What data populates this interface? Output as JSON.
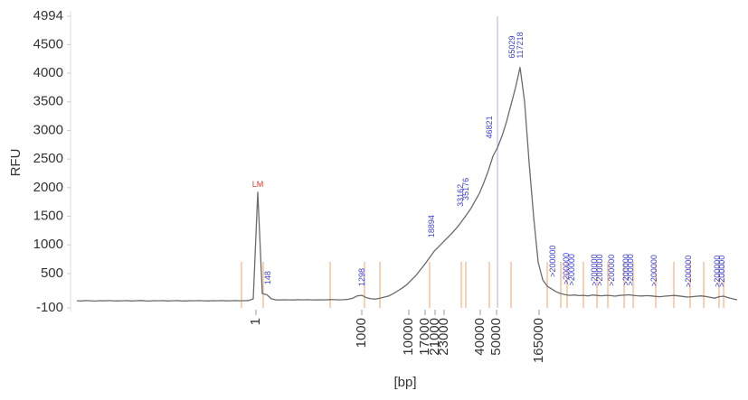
{
  "chart_data": {
    "type": "line",
    "y_label": "RFU",
    "x_label": "[bp]",
    "ylim": [
      -100,
      4994
    ],
    "yticks": [
      -100,
      500,
      1000,
      1500,
      2000,
      2500,
      3000,
      3500,
      4000,
      4500,
      4994
    ],
    "xlim": [
      0,
      146
    ],
    "xticks": [
      {
        "value": 39.6,
        "label": "1"
      },
      {
        "value": 63,
        "label": "1000"
      },
      {
        "value": 73.4,
        "label": "10000"
      },
      {
        "value": 77,
        "label": "17000"
      },
      {
        "value": 79.2,
        "label": "21000"
      },
      {
        "value": 81.2,
        "label": "23000"
      },
      {
        "value": 89.2,
        "label": "40000"
      },
      {
        "value": 92.8,
        "label": "50000"
      },
      {
        "value": 102.2,
        "label": "165000"
      }
    ],
    "series": [
      {
        "color": "#6b6b6b",
        "values": [
          25,
          22,
          27,
          24,
          20,
          26,
          23,
          28,
          25,
          21,
          24,
          27,
          22,
          25,
          29,
          23,
          20,
          26,
          24,
          27,
          22,
          25,
          28,
          23,
          21,
          26,
          24,
          27,
          25,
          22,
          26,
          24,
          28,
          23,
          25,
          27,
          24,
          26,
          30,
          60,
          1920,
          150,
          130,
          60,
          40,
          38,
          42,
          41,
          39,
          43,
          40,
          44,
          41,
          38,
          42,
          40,
          45,
          43,
          41,
          44,
          50,
          70,
          110,
          120,
          80,
          60,
          55,
          70,
          90,
          110,
          150,
          200,
          250,
          310,
          390,
          470,
          570,
          670,
          780,
          890,
          970,
          1050,
          1130,
          1210,
          1300,
          1400,
          1510,
          1620,
          1760,
          1900,
          2090,
          2300,
          2550,
          2700,
          2900,
          3150,
          3450,
          3750,
          4100,
          3500,
          2440,
          1490,
          700,
          390,
          280,
          230,
          180,
          150,
          130,
          120,
          125,
          115,
          120,
          110,
          125,
          118,
          112,
          120,
          115,
          105,
          118,
          122,
          128,
          120,
          112,
          108,
          115,
          110,
          100,
          95,
          105,
          112,
          118,
          110,
          100,
          90,
          96,
          104,
          110,
          100,
          85,
          70,
          95,
          105,
          80,
          60,
          40
        ]
      }
    ],
    "markers": [
      36.4,
      41.2,
      56,
      63.6,
      67,
      78,
      85,
      86,
      91.2,
      96,
      104,
      107,
      108.4,
      112,
      115,
      117.4,
      121,
      123,
      128,
      132,
      135.6,
      138.6,
      142,
      143
    ],
    "marker_color": "#f4b183",
    "reference_line": 93,
    "reference_color": "#b8bdf0",
    "peaks": [
      {
        "label": "LM",
        "x": 40,
        "color": "#e03c31"
      },
      {
        "label": "148",
        "x": 42.2,
        "color": "#3a3fd0"
      },
      {
        "label": "1298",
        "x": 63,
        "color": "#3a3fd0"
      },
      {
        "label": "18894",
        "x": 78.4,
        "color": "#3a3fd0"
      },
      {
        "label": "33162",
        "x": 84.8,
        "color": "#3a3fd0"
      },
      {
        "label": "35176",
        "x": 86,
        "color": "#3a3fd0"
      },
      {
        "label": "46821",
        "x": 91.2,
        "color": "#3a3fd0"
      },
      {
        "label": "65029",
        "x": 96.2,
        "color": "#3a3fd0"
      },
      {
        "label": "117218",
        "x": 98,
        "color": "#3a3fd0"
      },
      {
        "label": ">200000",
        "x": 105.2,
        "color": "#3a3fd0"
      },
      {
        "label": ">200000",
        "x": 108.2,
        "color": "#3a3fd0"
      },
      {
        "label": ">200000",
        "x": 109.4,
        "color": "#3a3fd0"
      },
      {
        "label": ">200000",
        "x": 114.4,
        "color": "#3a3fd0"
      },
      {
        "label": ">200000",
        "x": 115.6,
        "color": "#3a3fd0"
      },
      {
        "label": ">200000",
        "x": 118.2,
        "color": "#3a3fd0"
      },
      {
        "label": ">200000",
        "x": 121.4,
        "color": "#3a3fd0"
      },
      {
        "label": ">200000",
        "x": 122.4,
        "color": "#3a3fd0"
      },
      {
        "label": ">200000",
        "x": 127.6,
        "color": "#3a3fd0"
      },
      {
        "label": ">200000",
        "x": 135.2,
        "color": "#3a3fd0"
      },
      {
        "label": ">200000",
        "x": 141.6,
        "color": "#3a3fd0"
      },
      {
        "label": ">200000",
        "x": 142.6,
        "color": "#3a3fd0"
      }
    ]
  }
}
